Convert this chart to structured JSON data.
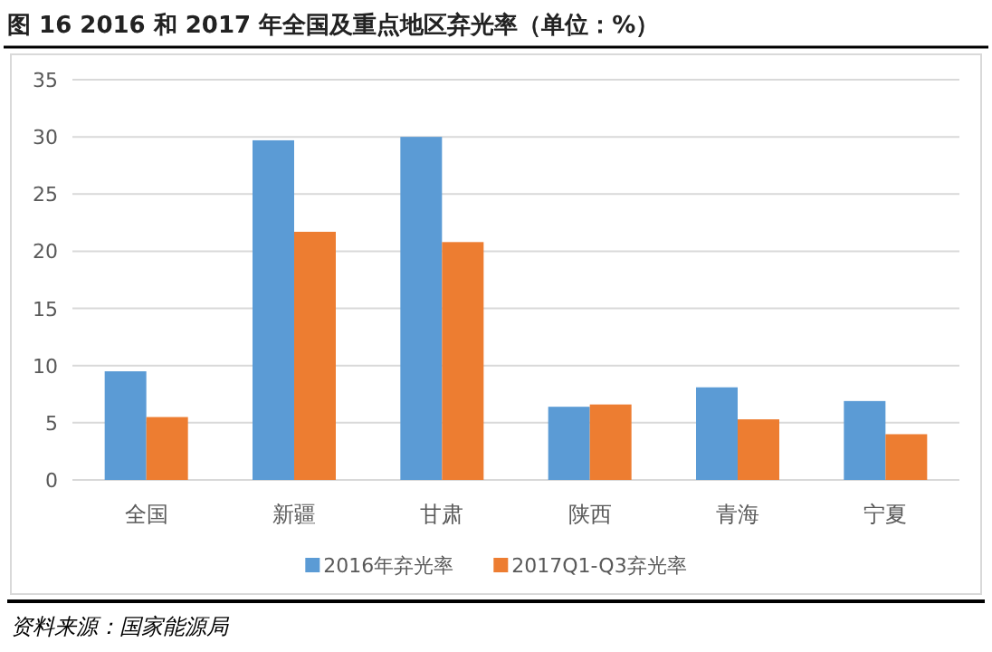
{
  "chart_data": {
    "type": "bar",
    "title": "图 16 2016 和 2017 年全国及重点地区弃光率（单位：%）",
    "categories": [
      "全国",
      "新疆",
      "甘肃",
      "陕西",
      "青海",
      "宁夏"
    ],
    "series": [
      {
        "name": "2016年弃光率",
        "color": "#5b9bd5",
        "values": [
          9.5,
          29.7,
          30.0,
          6.4,
          8.1,
          6.9
        ]
      },
      {
        "name": "2017Q1-Q3弃光率",
        "color": "#ed7d31",
        "values": [
          5.5,
          21.7,
          20.8,
          6.6,
          5.3,
          4.0
        ]
      }
    ],
    "ylim": [
      0,
      35
    ],
    "yticks": [
      0,
      5,
      10,
      15,
      20,
      25,
      30,
      35
    ],
    "grid": "y",
    "legend": "bottom",
    "annotations": [
      "资料来源：国家能源局"
    ]
  }
}
